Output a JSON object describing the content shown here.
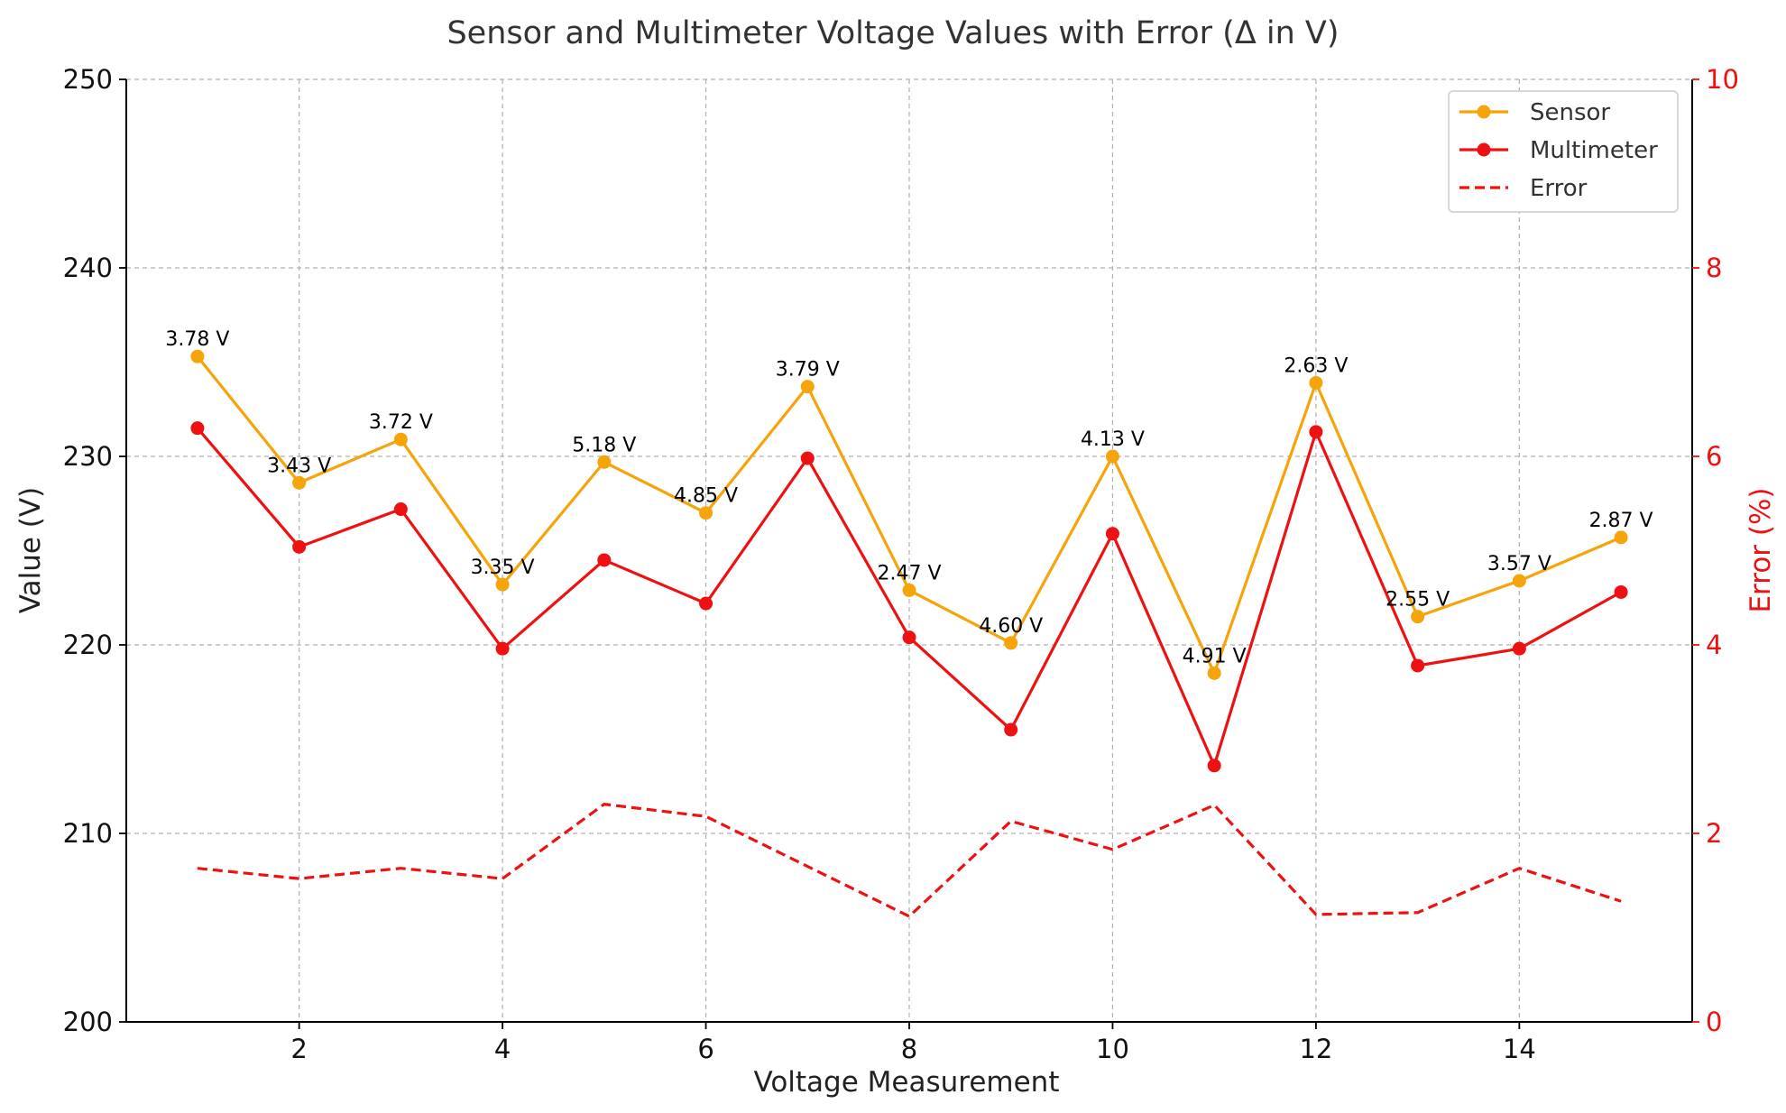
{
  "chart_data": {
    "type": "line",
    "title": "Sensor and Multimeter Voltage Values with Error (Δ in V)",
    "xlabel": "Voltage Measurement",
    "ylabel": "Value (V)",
    "y2label": "Error (%)",
    "xlim": [
      0.3,
      15.7
    ],
    "ylim": [
      200,
      250
    ],
    "y2lim": [
      0,
      10
    ],
    "x_ticks": [
      2,
      4,
      6,
      8,
      10,
      12,
      14
    ],
    "y_ticks": [
      200,
      210,
      220,
      230,
      240,
      250
    ],
    "y2_ticks": [
      0,
      2,
      4,
      6,
      8,
      10
    ],
    "grid": true,
    "legend_position": "top-right",
    "x": [
      1,
      2,
      3,
      4,
      5,
      6,
      7,
      8,
      9,
      10,
      11,
      12,
      13,
      14,
      15
    ],
    "series": [
      {
        "name": "Sensor",
        "axis": "left",
        "color": "#f5a40a",
        "style": "solid-marker",
        "values": [
          235.3,
          228.6,
          230.9,
          223.2,
          229.7,
          227.0,
          233.7,
          222.9,
          220.1,
          230.0,
          218.5,
          233.9,
          221.5,
          223.4,
          225.7
        ]
      },
      {
        "name": "Multimeter",
        "axis": "left",
        "color": "#ee1111",
        "style": "solid-marker",
        "values": [
          231.5,
          225.2,
          227.2,
          219.8,
          224.5,
          222.2,
          229.9,
          220.4,
          215.5,
          225.9,
          213.6,
          231.3,
          218.9,
          219.8,
          222.8
        ]
      },
      {
        "name": "Error",
        "axis": "right",
        "color": "#ee1111",
        "style": "dashed",
        "values": [
          1.63,
          1.52,
          1.63,
          1.52,
          2.31,
          2.18,
          1.65,
          1.12,
          2.13,
          1.83,
          2.3,
          1.14,
          1.16,
          1.63,
          1.28
        ]
      }
    ],
    "annotations": [
      "3.78 V",
      "3.43 V",
      "3.72 V",
      "3.35 V",
      "5.18 V",
      "4.85 V",
      "3.79 V",
      "2.47 V",
      "4.60 V",
      "4.13 V",
      "4.91 V",
      "2.63 V",
      "2.55 V",
      "3.57 V",
      "2.87 V"
    ]
  }
}
